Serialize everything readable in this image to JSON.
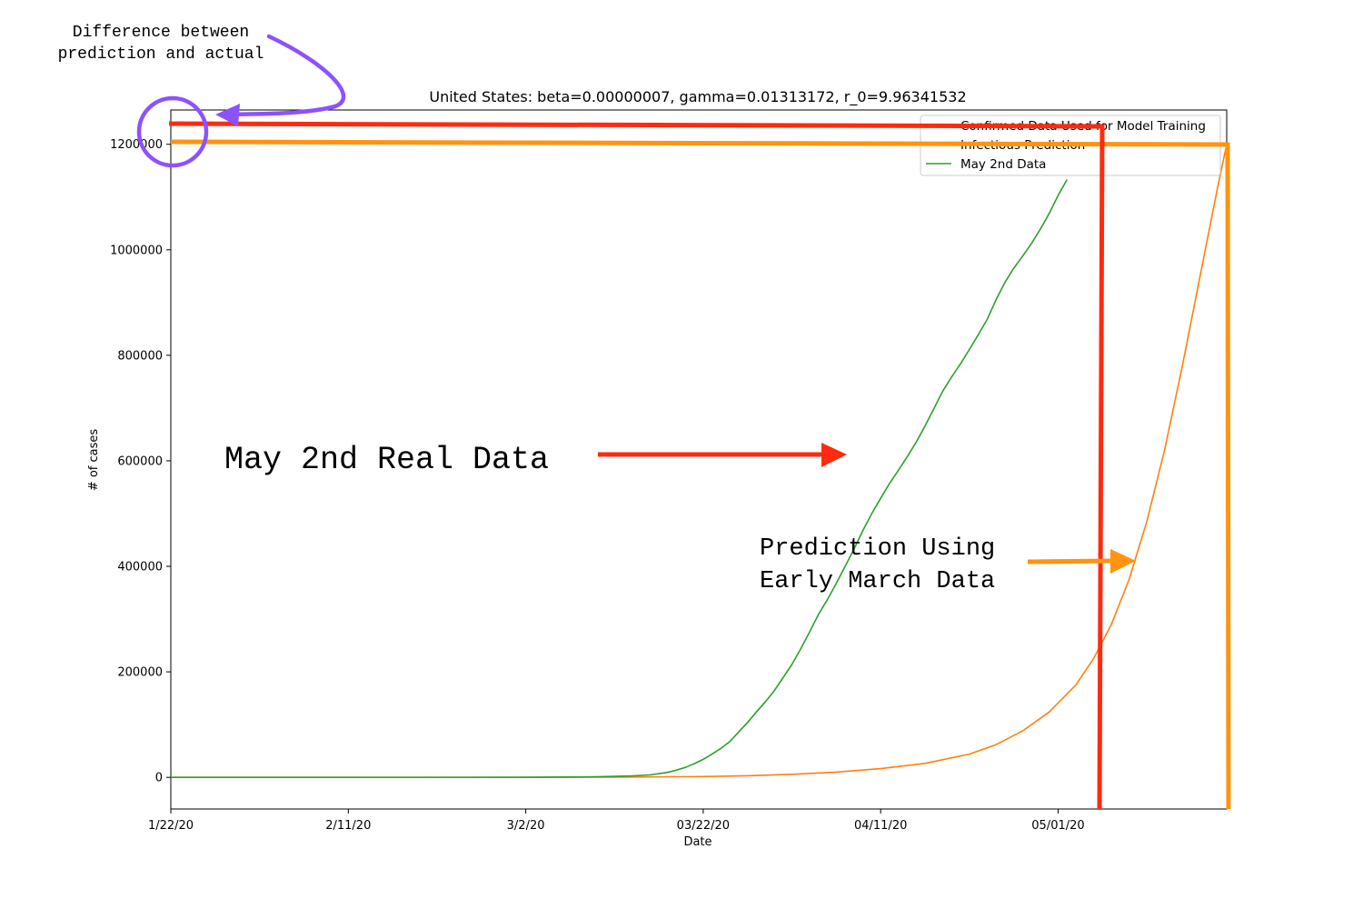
{
  "chart_data": {
    "type": "line",
    "title": "United States: beta=0.00000007, gamma=0.01313172, r_0=9.96341532",
    "xlabel": "Date",
    "ylabel": "# of cases",
    "x_ticks": [
      "1/22/20",
      "2/11/20",
      "3/2/20",
      "03/22/20",
      "04/11/20",
      "05/01/20"
    ],
    "y_ticks": [
      "0",
      "200000",
      "400000",
      "600000",
      "800000",
      "1000000",
      "1200000"
    ],
    "xlim": [
      "2020-01-22",
      "2020-05-20"
    ],
    "ylim": [
      -60000,
      1265000
    ],
    "legend": {
      "placement": "top-right",
      "entries": [
        "Confirmed Data Used for Model Training",
        "Infectious Prediction",
        "May 2nd Data"
      ]
    },
    "series": [
      {
        "name": "May 2nd Data",
        "color": "#2ca02c",
        "x": [
          "2020-01-22",
          "2020-02-11",
          "2020-03-02",
          "2020-03-10",
          "2020-03-14",
          "2020-03-16",
          "2020-03-18",
          "2020-03-19",
          "2020-03-20",
          "2020-03-21",
          "2020-03-22",
          "2020-03-23",
          "2020-03-24",
          "2020-03-25",
          "2020-03-26",
          "2020-03-27",
          "2020-03-28",
          "2020-03-29",
          "2020-03-30",
          "2020-03-31",
          "2020-04-01",
          "2020-04-02",
          "2020-04-03",
          "2020-04-04",
          "2020-04-05",
          "2020-04-06",
          "2020-04-07",
          "2020-04-08",
          "2020-04-09",
          "2020-04-10",
          "2020-04-11",
          "2020-04-12",
          "2020-04-13",
          "2020-04-14",
          "2020-04-15",
          "2020-04-16",
          "2020-04-17",
          "2020-04-18",
          "2020-04-19",
          "2020-04-20",
          "2020-04-21",
          "2020-04-22",
          "2020-04-23",
          "2020-04-24",
          "2020-04-25",
          "2020-04-26",
          "2020-04-27",
          "2020-04-28",
          "2020-04-29",
          "2020-04-30",
          "2020-05-01",
          "2020-05-02"
        ],
        "values": [
          1,
          11,
          100,
          1000,
          2700,
          4600,
          9400,
          14000,
          19000,
          26000,
          34000,
          44000,
          55000,
          68000,
          86000,
          104000,
          124000,
          143000,
          164000,
          189000,
          214000,
          244000,
          276000,
          309000,
          337000,
          368000,
          400000,
          433000,
          468000,
          500000,
          529000,
          557000,
          582000,
          608000,
          635000,
          666000,
          699000,
          732000,
          759000,
          784000,
          811000,
          839000,
          868000,
          905000,
          938000,
          965000,
          988000,
          1012000,
          1039000,
          1069000,
          1103000,
          1133000
        ]
      },
      {
        "name": "Infectious Prediction",
        "color": "#ff7f0e",
        "x": [
          "2020-01-22",
          "2020-02-11",
          "2020-03-02",
          "2020-03-12",
          "2020-03-22",
          "2020-03-27",
          "2020-04-01",
          "2020-04-06",
          "2020-04-11",
          "2020-04-16",
          "2020-04-21",
          "2020-04-24",
          "2020-04-27",
          "2020-04-30",
          "2020-05-03",
          "2020-05-05",
          "2020-05-07",
          "2020-05-09",
          "2020-05-11",
          "2020-05-13",
          "2020-05-15",
          "2020-05-17",
          "2020-05-19",
          "2020-05-20"
        ],
        "values": [
          0,
          0,
          1,
          300,
          1500,
          3000,
          5800,
          10000,
          16500,
          26500,
          44000,
          62000,
          88000,
          124000,
          175000,
          225000,
          290000,
          375000,
          485000,
          620000,
          780000,
          950000,
          1120000,
          1200000
        ]
      }
    ],
    "annotations": [
      {
        "text_lines": [
          "Difference between",
          "prediction and actual"
        ],
        "color": "#8c52ff"
      },
      {
        "text_lines": [
          "May 2nd Real Data"
        ],
        "color": "#ff2a0f"
      },
      {
        "text_lines": [
          "Prediction Using",
          "Early March Data"
        ],
        "color": "#ff9410"
      }
    ],
    "overlay_reference_levels": {
      "red_line_value": 1233000,
      "orange_line_value": 1200000
    }
  }
}
